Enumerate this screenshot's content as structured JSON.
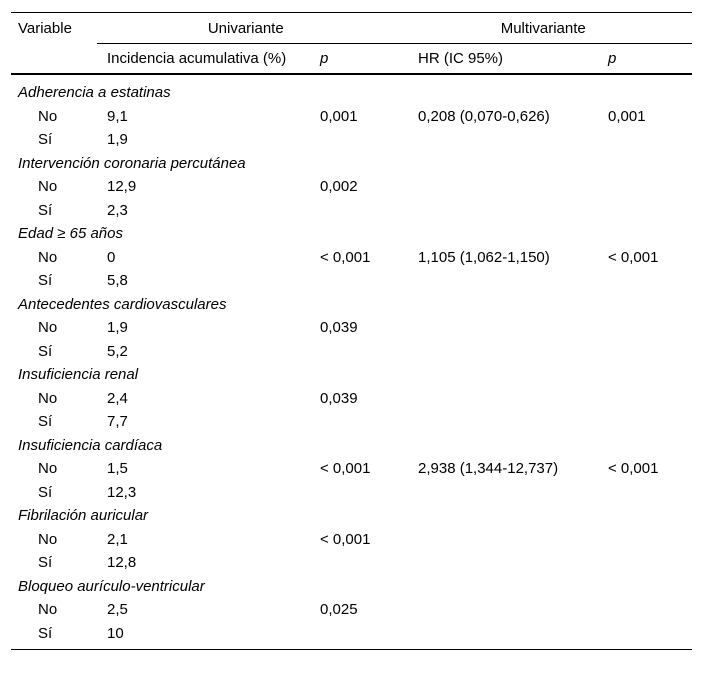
{
  "colors": {
    "text": "#000000",
    "border": "#000000",
    "background": "#ffffff"
  },
  "table": {
    "header": {
      "variable_label": "Variable",
      "univariante_label": "Univariante",
      "multivariante_label": "Multivariante",
      "col_incidencia": "Incidencia acumulativa (%)",
      "col_p_univariante": "p",
      "col_hr": "HR (IC 95%)",
      "col_p_multivariante": "p"
    },
    "groups": [
      {
        "variable": "Adherencia a estatinas",
        "rows": [
          {
            "level": "No",
            "incidencia": "9,1",
            "p_uni": "0,001",
            "hr": "0,208 (0,070-0,626)",
            "p_multi": "0,001"
          },
          {
            "level": "Sí",
            "incidencia": "1,9",
            "p_uni": "",
            "hr": "",
            "p_multi": ""
          }
        ]
      },
      {
        "variable": "Intervención coronaria percutánea",
        "rows": [
          {
            "level": "No",
            "incidencia": "12,9",
            "p_uni": "0,002",
            "hr": "",
            "p_multi": ""
          },
          {
            "level": "Sí",
            "incidencia": "2,3",
            "p_uni": "",
            "hr": "",
            "p_multi": ""
          }
        ]
      },
      {
        "variable": "Edad ≥ 65 años",
        "rows": [
          {
            "level": "No",
            "incidencia": "0",
            "p_uni": "< 0,001",
            "hr": "1,105 (1,062-1,150)",
            "p_multi": "< 0,001"
          },
          {
            "level": "Sí",
            "incidencia": "5,8",
            "p_uni": "",
            "hr": "",
            "p_multi": ""
          }
        ]
      },
      {
        "variable": "Antecedentes cardiovasculares",
        "rows": [
          {
            "level": "No",
            "incidencia": "1,9",
            "p_uni": "0,039",
            "hr": "",
            "p_multi": ""
          },
          {
            "level": "Sí",
            "incidencia": "5,2",
            "p_uni": "",
            "hr": "",
            "p_multi": ""
          }
        ]
      },
      {
        "variable": "Insuficiencia renal",
        "rows": [
          {
            "level": "No",
            "incidencia": "2,4",
            "p_uni": "0,039",
            "hr": "",
            "p_multi": ""
          },
          {
            "level": "Sí",
            "incidencia": "7,7",
            "p_uni": "",
            "hr": "",
            "p_multi": ""
          }
        ]
      },
      {
        "variable": "Insuficiencia cardíaca",
        "rows": [
          {
            "level": "No",
            "incidencia": "1,5",
            "p_uni": "< 0,001",
            "hr": "2,938 (1,344-12,737)",
            "p_multi": "< 0,001"
          },
          {
            "level": "Sí",
            "incidencia": "12,3",
            "p_uni": "",
            "hr": "",
            "p_multi": ""
          }
        ]
      },
      {
        "variable": "Fibrilación auricular",
        "rows": [
          {
            "level": "No",
            "incidencia": "2,1",
            "p_uni": "< 0,001",
            "hr": "",
            "p_multi": ""
          },
          {
            "level": "Sí",
            "incidencia": "12,8",
            "p_uni": "",
            "hr": "",
            "p_multi": ""
          }
        ]
      },
      {
        "variable": "Bloqueo aurículo-ventricular",
        "rows": [
          {
            "level": "No",
            "incidencia": "2,5",
            "p_uni": "0,025",
            "hr": "",
            "p_multi": ""
          },
          {
            "level": "Sí",
            "incidencia": "10",
            "p_uni": "",
            "hr": "",
            "p_multi": ""
          }
        ]
      }
    ]
  }
}
